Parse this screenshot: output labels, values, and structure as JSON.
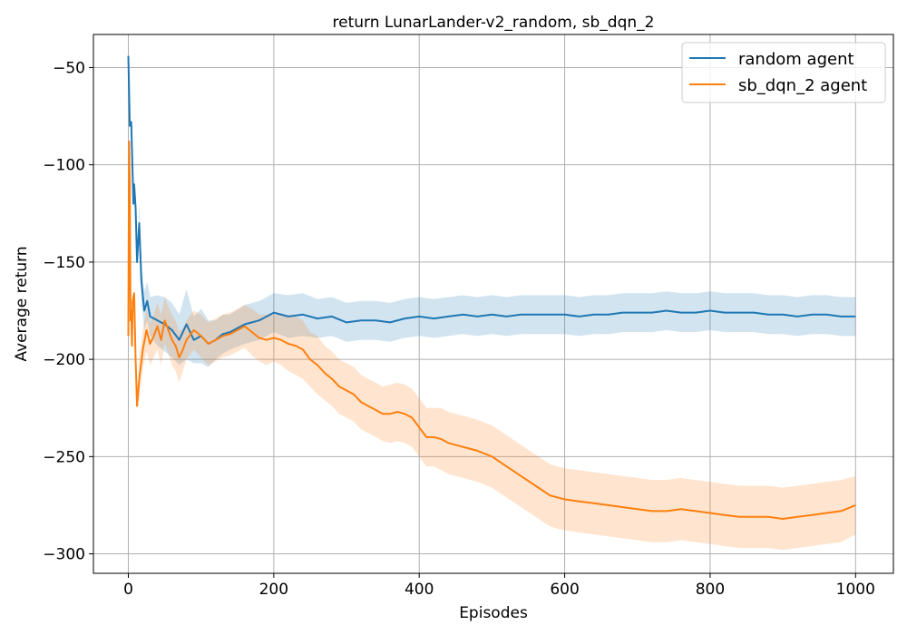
{
  "chart_data": {
    "type": "line",
    "title": "return LunarLander-v2_random, sb_dqn_2",
    "xlabel": "Episodes",
    "ylabel": "Average return",
    "xlim": [
      -48,
      1052
    ],
    "ylim": [
      -310,
      -33
    ],
    "xticks": [
      0,
      200,
      400,
      600,
      800,
      1000
    ],
    "yticks": [
      -50,
      -100,
      -150,
      -200,
      -250,
      -300
    ],
    "xtick_labels": [
      "0",
      "200",
      "400",
      "600",
      "800",
      "1000"
    ],
    "ytick_labels": [
      "−50",
      "−100",
      "−150",
      "−200",
      "−250",
      "−300"
    ],
    "grid": true,
    "legend_position": "upper right",
    "series": [
      {
        "name": "random agent",
        "color": "#1f77b4",
        "band_color": "#1f77b4",
        "x": [
          0,
          2,
          4,
          7,
          8,
          10,
          12,
          15,
          18,
          22,
          26,
          30,
          40,
          50,
          60,
          70,
          80,
          90,
          100,
          110,
          120,
          130,
          140,
          160,
          180,
          200,
          220,
          240,
          260,
          280,
          300,
          320,
          340,
          360,
          380,
          400,
          420,
          440,
          460,
          480,
          500,
          520,
          540,
          560,
          580,
          600,
          620,
          640,
          660,
          680,
          700,
          720,
          740,
          760,
          780,
          800,
          820,
          840,
          860,
          880,
          900,
          920,
          940,
          960,
          980,
          1000
        ],
        "y": [
          -44,
          -80,
          -78,
          -120,
          -110,
          -122,
          -150,
          -130,
          -160,
          -175,
          -170,
          -178,
          -180,
          -182,
          -185,
          -190,
          -182,
          -190,
          -188,
          -192,
          -190,
          -187,
          -186,
          -182,
          -180,
          -176,
          -178,
          -177,
          -179,
          -178,
          -181,
          -180,
          -180,
          -181,
          -179,
          -178,
          -179,
          -178,
          -177,
          -178,
          -177,
          -178,
          -177,
          -177,
          -177,
          -177,
          -178,
          -177,
          -177,
          -176,
          -176,
          -176,
          -175,
          -176,
          -176,
          -175,
          -176,
          -176,
          -176,
          -177,
          -177,
          -178,
          -177,
          -177,
          -178,
          -178
        ],
        "lower": [
          -44,
          -80,
          -78,
          -120,
          -110,
          -122,
          -150,
          -140,
          -170,
          -185,
          -180,
          -188,
          -193,
          -196,
          -199,
          -203,
          -200,
          -202,
          -202,
          -204,
          -200,
          -197,
          -195,
          -192,
          -190,
          -186,
          -189,
          -188,
          -189,
          -188,
          -191,
          -190,
          -190,
          -191,
          -189,
          -188,
          -189,
          -188,
          -187,
          -188,
          -187,
          -188,
          -187,
          -187,
          -187,
          -187,
          -188,
          -187,
          -187,
          -186,
          -186,
          -186,
          -185,
          -186,
          -186,
          -185,
          -186,
          -186,
          -186,
          -187,
          -187,
          -188,
          -187,
          -187,
          -188,
          -188
        ],
        "upper": [
          -44,
          -80,
          -78,
          -120,
          -110,
          -122,
          -150,
          -120,
          -150,
          -165,
          -160,
          -168,
          -167,
          -168,
          -171,
          -177,
          -164,
          -178,
          -174,
          -180,
          -180,
          -177,
          -177,
          -172,
          -170,
          -166,
          -167,
          -166,
          -169,
          -168,
          -171,
          -170,
          -170,
          -171,
          -169,
          -168,
          -169,
          -168,
          -167,
          -168,
          -167,
          -168,
          -167,
          -167,
          -167,
          -167,
          -168,
          -167,
          -167,
          -166,
          -166,
          -166,
          -165,
          -166,
          -166,
          -165,
          -166,
          -166,
          -166,
          -167,
          -167,
          -168,
          -167,
          -167,
          -168,
          -168
        ]
      },
      {
        "name": "sb_dqn_2 agent",
        "color": "#ff7f0e",
        "band_color": "#ff7f0e",
        "x": [
          0,
          1,
          2,
          3,
          4,
          5,
          6,
          8,
          10,
          12,
          15,
          20,
          25,
          30,
          35,
          40,
          45,
          50,
          55,
          60,
          65,
          70,
          75,
          80,
          90,
          100,
          110,
          120,
          130,
          140,
          150,
          160,
          170,
          180,
          190,
          200,
          210,
          220,
          230,
          240,
          250,
          260,
          270,
          280,
          290,
          300,
          310,
          320,
          330,
          340,
          350,
          360,
          370,
          380,
          390,
          400,
          410,
          420,
          430,
          440,
          460,
          480,
          500,
          520,
          540,
          560,
          580,
          600,
          620,
          640,
          660,
          680,
          700,
          720,
          740,
          760,
          780,
          800,
          820,
          840,
          860,
          880,
          900,
          920,
          940,
          960,
          980,
          1000
        ],
        "y": [
          -188,
          -88,
          -110,
          -180,
          -175,
          -193,
          -170,
          -166,
          -200,
          -224,
          -210,
          -195,
          -185,
          -192,
          -188,
          -183,
          -190,
          -180,
          -185,
          -190,
          -193,
          -199,
          -195,
          -190,
          -185,
          -188,
          -192,
          -190,
          -188,
          -187,
          -185,
          -183,
          -186,
          -189,
          -190,
          -189,
          -190,
          -192,
          -193,
          -195,
          -200,
          -203,
          -207,
          -210,
          -214,
          -216,
          -218,
          -222,
          -224,
          -226,
          -228,
          -228,
          -227,
          -228,
          -230,
          -235,
          -240,
          -240,
          -241,
          -243,
          -245,
          -247,
          -250,
          -255,
          -260,
          -265,
          -270,
          -272,
          -273,
          -274,
          -275,
          -276,
          -277,
          -278,
          -278,
          -277,
          -278,
          -279,
          -280,
          -281,
          -281,
          -281,
          -282,
          -281,
          -280,
          -279,
          -278,
          -275
        ],
        "lower": [
          -188,
          -88,
          -110,
          -180,
          -175,
          -193,
          -170,
          -166,
          -200,
          -224,
          -220,
          -205,
          -196,
          -203,
          -199,
          -195,
          -203,
          -192,
          -197,
          -203,
          -206,
          -212,
          -206,
          -200,
          -195,
          -199,
          -203,
          -201,
          -199,
          -198,
          -196,
          -194,
          -198,
          -201,
          -203,
          -201,
          -203,
          -206,
          -208,
          -210,
          -214,
          -218,
          -221,
          -224,
          -228,
          -230,
          -232,
          -236,
          -238,
          -240,
          -242,
          -243,
          -242,
          -243,
          -245,
          -250,
          -255,
          -255,
          -257,
          -259,
          -261,
          -263,
          -266,
          -271,
          -276,
          -281,
          -286,
          -288,
          -289,
          -290,
          -291,
          -292,
          -293,
          -294,
          -294,
          -293,
          -294,
          -295,
          -296,
          -297,
          -297,
          -297,
          -298,
          -297,
          -296,
          -295,
          -294,
          -290
        ],
        "upper": [
          -188,
          -88,
          -110,
          -180,
          -175,
          -193,
          -170,
          -166,
          -200,
          -224,
          -200,
          -185,
          -174,
          -181,
          -177,
          -171,
          -177,
          -168,
          -173,
          -177,
          -180,
          -186,
          -184,
          -180,
          -175,
          -177,
          -181,
          -179,
          -177,
          -176,
          -174,
          -172,
          -174,
          -177,
          -177,
          -177,
          -177,
          -178,
          -178,
          -180,
          -186,
          -188,
          -193,
          -196,
          -200,
          -202,
          -204,
          -208,
          -210,
          -212,
          -214,
          -213,
          -212,
          -213,
          -215,
          -220,
          -225,
          -225,
          -225,
          -227,
          -229,
          -231,
          -234,
          -239,
          -244,
          -249,
          -254,
          -256,
          -257,
          -258,
          -259,
          -260,
          -261,
          -262,
          -262,
          -261,
          -262,
          -263,
          -264,
          -265,
          -265,
          -265,
          -266,
          -265,
          -264,
          -263,
          -262,
          -260
        ]
      }
    ]
  }
}
